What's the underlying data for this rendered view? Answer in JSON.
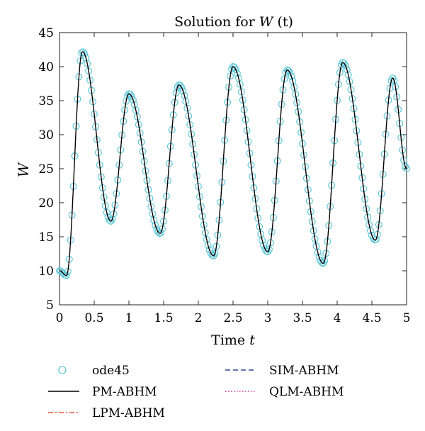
{
  "chart_data": {
    "type": "line",
    "title_prefix": "Solution for ",
    "title_var": "W",
    "title_suffix": " (t)",
    "xlabel_prefix": "Time ",
    "xlabel_var": "t",
    "ylabel": "W",
    "xlim": [
      0,
      5
    ],
    "ylim": [
      5,
      45
    ],
    "xticks": [
      0,
      0.5,
      1,
      1.5,
      2,
      2.5,
      3,
      3.5,
      4,
      4.5,
      5
    ],
    "yticks": [
      5,
      10,
      15,
      20,
      25,
      30,
      35,
      40,
      45
    ],
    "grid": false,
    "legend_position": "below",
    "series": [
      {
        "name": "ode45",
        "style": "circle-markers",
        "color": "#5ec8d8"
      },
      {
        "name": "PM-ABHM",
        "style": "solid",
        "color": "#000000"
      },
      {
        "name": "LPM-ABHM",
        "style": "dash-dot",
        "color": "#e8503a"
      },
      {
        "name": "SIM-ABHM",
        "style": "dashed",
        "color": "#2b4a9e"
      },
      {
        "name": "QLM-ABHM",
        "style": "dotted",
        "color": "#c0308a"
      }
    ],
    "peaks_and_troughs": [
      {
        "x": 0,
        "y": 10
      },
      {
        "x": 0.1,
        "y": 9.3
      },
      {
        "x": 0.33,
        "y": 42.2
      },
      {
        "x": 0.74,
        "y": 17.3
      },
      {
        "x": 1.0,
        "y": 36
      },
      {
        "x": 1.45,
        "y": 15.5
      },
      {
        "x": 1.72,
        "y": 37.3
      },
      {
        "x": 2.22,
        "y": 12.2
      },
      {
        "x": 2.5,
        "y": 40
      },
      {
        "x": 3.0,
        "y": 12.8
      },
      {
        "x": 3.28,
        "y": 39.5
      },
      {
        "x": 3.8,
        "y": 11.1
      },
      {
        "x": 4.08,
        "y": 40.6
      },
      {
        "x": 4.55,
        "y": 14.5
      },
      {
        "x": 4.8,
        "y": 38.3
      },
      {
        "x": 5.0,
        "y": 25
      }
    ]
  }
}
